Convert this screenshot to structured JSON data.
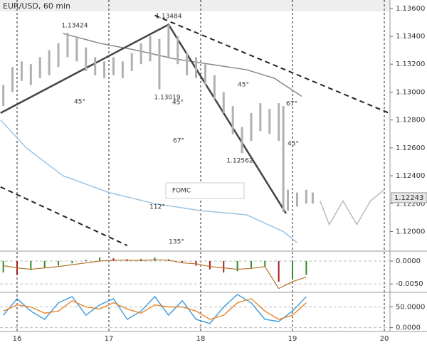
{
  "chart_data": [
    {
      "type": "ohlc",
      "title": "EUR/USD, 60 min",
      "xlim": [
        15.814,
        20.062
      ],
      "xticks": [
        16,
        17,
        18,
        19,
        20
      ],
      "ylim": [
        1.1186,
        1.1366
      ],
      "yticks": [
        {
          "value": 1.136,
          "label": "1.13600"
        },
        {
          "value": 1.134,
          "label": "1.13400"
        },
        {
          "value": 1.132,
          "label": "1.13200"
        },
        {
          "value": 1.13,
          "label": "1.13000"
        },
        {
          "value": 1.128,
          "label": "1.12800"
        },
        {
          "value": 1.126,
          "label": "1.12600"
        },
        {
          "value": 1.124,
          "label": "1.12400"
        },
        {
          "value": 1.122,
          "label": "1.12200"
        },
        {
          "value": 1.12,
          "label": "1.12000"
        }
      ],
      "last_price": {
        "value": 1.12243,
        "label": "1.12243"
      },
      "color": "#b0b0b0",
      "x": [
        15.85,
        15.95,
        16.05,
        16.15,
        16.25,
        16.35,
        16.45,
        16.55,
        16.65,
        16.75,
        16.85,
        16.95,
        17.05,
        17.15,
        17.25,
        17.35,
        17.45,
        17.55,
        17.65,
        17.75,
        17.85,
        17.95,
        18.05,
        18.15,
        18.25,
        18.35,
        18.45,
        18.55,
        18.65,
        18.75,
        18.85,
        18.9,
        18.95,
        19.05,
        19.15,
        19.22
      ],
      "high": [
        1.1305,
        1.1318,
        1.1322,
        1.132,
        1.1325,
        1.133,
        1.1335,
        1.13424,
        1.134,
        1.1332,
        1.1325,
        1.1322,
        1.1325,
        1.1322,
        1.1328,
        1.1335,
        1.134,
        1.1338,
        1.13484,
        1.134,
        1.1328,
        1.1325,
        1.132,
        1.1312,
        1.13,
        1.129,
        1.1275,
        1.1285,
        1.1292,
        1.1288,
        1.1292,
        1.129,
        1.123,
        1.1228,
        1.123,
        1.1228
      ],
      "low": [
        1.129,
        1.13,
        1.1308,
        1.1305,
        1.131,
        1.1312,
        1.1318,
        1.1325,
        1.1322,
        1.1315,
        1.1312,
        1.131,
        1.1312,
        1.131,
        1.1315,
        1.132,
        1.1322,
        1.13019,
        1.1325,
        1.132,
        1.1312,
        1.131,
        1.1305,
        1.1295,
        1.1285,
        1.127,
        1.12562,
        1.1265,
        1.1272,
        1.127,
        1.1265,
        1.1214,
        1.1215,
        1.1218,
        1.122,
        1.122
      ],
      "series": [
        {
          "color": "#888888",
          "x": [
            16.5,
            16.9,
            17.3,
            17.7,
            18.1,
            18.5,
            18.8,
            19.1
          ],
          "values": [
            1.1342,
            1.1335,
            1.133,
            1.1324,
            1.132,
            1.1316,
            1.131,
            1.1297
          ]
        },
        {
          "color": "#9ec3e0",
          "x": [
            15.82,
            16.1,
            16.5,
            17.0,
            17.5,
            18.0,
            18.5,
            18.9,
            19.05
          ],
          "values": [
            1.128,
            1.126,
            1.124,
            1.1228,
            1.122,
            1.1215,
            1.1212,
            1.12,
            1.1192
          ]
        },
        {
          "color": "#444444",
          "x": [
            15.82,
            17.65,
            18.93
          ],
          "values": [
            1.1285,
            1.13484,
            1.1213
          ]
        },
        {
          "color": "#bbbbbb",
          "x": [
            19.3,
            19.4,
            19.55,
            19.7,
            19.85,
            20.0
          ],
          "values": [
            1.1222,
            1.1205,
            1.1222,
            1.1205,
            1.1222,
            1.123
          ]
        },
        {
          "color": "#222222",
          "dashed": true,
          "x": [
            17.5,
            20.05
          ],
          "values": [
            1.1355,
            1.1285
          ]
        },
        {
          "color": "#222222",
          "dashed": true,
          "x": [
            15.82,
            17.2
          ],
          "values": [
            1.1232,
            1.119
          ]
        }
      ],
      "annotations": [
        "1.13484",
        "1.13424",
        "1.13019",
        "1.12562",
        "FOMC",
        "45°",
        "45°",
        "45°",
        "67°",
        "67°",
        "45°",
        "112°",
        "135°"
      ]
    },
    {
      "type": "macd",
      "ylim": [
        -0.00683,
        0.00217
      ],
      "yticks": [
        {
          "value": 0,
          "label": "0.0000"
        },
        {
          "value": -0.005,
          "label": "-0.0050"
        }
      ],
      "x": [
        15.85,
        16.0,
        16.15,
        16.3,
        16.45,
        16.6,
        16.75,
        16.9,
        17.05,
        17.2,
        17.35,
        17.5,
        17.65,
        17.8,
        17.95,
        18.1,
        18.25,
        18.4,
        18.55,
        18.7,
        18.85,
        19.0,
        19.15
      ],
      "values": [
        -0.0025,
        -0.003,
        -0.002,
        -0.0015,
        -0.001,
        -0.0005,
        0.0003,
        0.0008,
        0.0006,
        0.0004,
        0.0005,
        0.0008,
        0.0004,
        -0.0003,
        -0.001,
        -0.0018,
        -0.0025,
        -0.0022,
        -0.0015,
        -0.0012,
        -0.0045,
        -0.004,
        -0.003
      ],
      "signal": {
        "color": "#b8742a",
        "values": [
          -0.001,
          -0.0015,
          -0.0018,
          -0.0015,
          -0.0012,
          -0.0008,
          -0.0004,
          0,
          0.0002,
          0.0002,
          0.0001,
          0.0003,
          0.0002,
          -0.0004,
          -0.0006,
          -0.0012,
          -0.0015,
          -0.0018,
          -0.0016,
          -0.0012,
          -0.006,
          -0.0045,
          -0.0035
        ]
      }
    },
    {
      "type": "line",
      "ylim": [
        -9.26,
        85.2
      ],
      "yticks": [
        {
          "value": 50,
          "label": "50.0000"
        },
        {
          "value": 0,
          "label": "0.0000"
        }
      ],
      "x": [
        15.85,
        16.0,
        16.15,
        16.3,
        16.45,
        16.6,
        16.75,
        16.9,
        17.05,
        17.2,
        17.35,
        17.5,
        17.65,
        17.8,
        17.95,
        18.1,
        18.25,
        18.4,
        18.55,
        18.7,
        18.85,
        19.0,
        19.15
      ],
      "series": [
        {
          "color": "#3a9ad9",
          "values": [
            30,
            70,
            40,
            20,
            60,
            75,
            30,
            55,
            70,
            20,
            40,
            75,
            30,
            65,
            20,
            10,
            50,
            80,
            60,
            20,
            15,
            40,
            75
          ]
        },
        {
          "color": "#e8862a",
          "values": [
            40,
            55,
            50,
            35,
            40,
            65,
            50,
            45,
            60,
            45,
            35,
            55,
            50,
            50,
            40,
            20,
            30,
            60,
            70,
            40,
            20,
            30,
            60
          ]
        }
      ]
    }
  ]
}
